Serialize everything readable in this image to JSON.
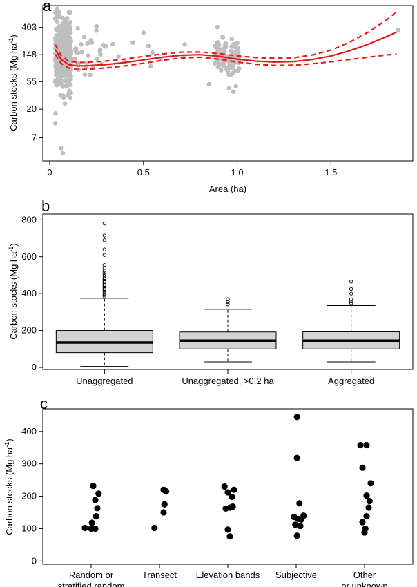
{
  "chart_data": [
    {
      "panel": "a",
      "type": "scatter",
      "xlabel": "Area (ha)",
      "ylabel": "Carbon stocks (Mg ha",
      "ylabel_sup": "-1",
      "ylabel_close": ")",
      "y_scale": "log",
      "xlim": [
        0,
        1.9
      ],
      "ylim": [
        3,
        900
      ],
      "x_ticks": [
        0,
        0.5,
        1,
        1.5
      ],
      "x_tick_labels": [
        "0",
        "0.5",
        "1.0",
        "1.5"
      ],
      "y_ticks": [
        7,
        20,
        55,
        148,
        403
      ],
      "y_tick_labels": [
        "7",
        "20",
        "55",
        "148",
        "403"
      ],
      "points_color": "#bebebe",
      "fit_color": "#e31a1c",
      "fit_curve": {
        "x": [
          0.03,
          0.06,
          0.1,
          0.15,
          0.2,
          0.3,
          0.4,
          0.5,
          0.6,
          0.7,
          0.8,
          0.9,
          1.0,
          1.1,
          1.2,
          1.3,
          1.4,
          1.5,
          1.6,
          1.7,
          1.8,
          1.85
        ],
        "fit": [
          180,
          125,
          103,
          98,
          99,
          103,
          111,
          122,
          135,
          145,
          148,
          140,
          126,
          117,
          113,
          115,
          124,
          141,
          171,
          218,
          290,
          340
        ],
        "lower": [
          150,
          108,
          91,
          86,
          87,
          91,
          98,
          108,
          120,
          131,
          135,
          126,
          113,
          104,
          100,
          101,
          106,
          114,
          124,
          135,
          147,
          152
        ],
        "upper": [
          215,
          145,
          117,
          111,
          112,
          117,
          126,
          139,
          152,
          162,
          163,
          155,
          142,
          133,
          130,
          132,
          146,
          175,
          234,
          340,
          540,
          720
        ]
      },
      "clusters": [
        {
          "x_min": 0.03,
          "x_max": 0.115,
          "n": 420,
          "log_mean": 5.0,
          "log_sd": 0.62
        },
        {
          "x_min": 0.115,
          "x_max": 0.3,
          "n": 30,
          "log_mean": 5.0,
          "log_sd": 0.4
        },
        {
          "x_min": 0.3,
          "x_max": 0.9,
          "n": 10,
          "log_mean": 5.1,
          "log_sd": 0.5
        },
        {
          "x_min": 0.88,
          "x_max": 1.01,
          "n": 110,
          "log_mean": 4.85,
          "log_sd": 0.38
        },
        {
          "x_min": 1.85,
          "x_max": 1.86,
          "n": 1,
          "log_mean": 5.9,
          "log_sd": 0.0
        }
      ],
      "extra_points": [
        {
          "x": 0.06,
          "y": 4.8
        },
        {
          "x": 0.07,
          "y": 4.0
        },
        {
          "x": 0.03,
          "y": 12
        },
        {
          "x": 0.04,
          "y": 800
        },
        {
          "x": 0.25,
          "y": 420
        },
        {
          "x": 0.5,
          "y": 330
        },
        {
          "x": 0.98,
          "y": 38
        },
        {
          "x": 0.85,
          "y": 50
        },
        {
          "x": 0.4,
          "y": 115
        },
        {
          "x": 0.3,
          "y": 200
        }
      ]
    },
    {
      "panel": "b",
      "type": "box",
      "ylabel": "Carbon stocks (Mg ha",
      "ylabel_sup": "-1",
      "ylabel_close": ")",
      "ylim": [
        0,
        820
      ],
      "y_ticks": [
        0,
        200,
        400,
        600,
        800
      ],
      "y_tick_labels": [
        "0",
        "200",
        "400",
        "600",
        "800"
      ],
      "categories": [
        "Unaggregated",
        "Unaggregated, >0.2 ha",
        "Aggregated"
      ],
      "boxes": [
        {
          "min": 5,
          "q1": 80,
          "median": 135,
          "q3": 200,
          "max": 375,
          "outliers": [
            385,
            393,
            400,
            410,
            418,
            425,
            432,
            440,
            448,
            455,
            463,
            470,
            478,
            485,
            495,
            505,
            515,
            525,
            540,
            555,
            610,
            640,
            690,
            715,
            780
          ]
        },
        {
          "min": 30,
          "q1": 100,
          "median": 145,
          "q3": 192,
          "max": 315,
          "outliers": [
            342,
            355,
            370
          ]
        },
        {
          "min": 30,
          "q1": 100,
          "median": 145,
          "q3": 193,
          "max": 335,
          "outliers": [
            348,
            358,
            370,
            400,
            425,
            465
          ]
        }
      ]
    },
    {
      "panel": "c",
      "type": "scatter",
      "ylabel": "Carbon stocks (Mg ha",
      "ylabel_sup": "-1",
      "ylabel_close": ")",
      "ylim": [
        -10,
        470
      ],
      "y_ticks": [
        0,
        100,
        200,
        300,
        400
      ],
      "y_tick_labels": [
        "0",
        "100",
        "200",
        "300",
        "400"
      ],
      "categories": [
        [
          "Random or",
          "stratified random"
        ],
        [
          "Transect"
        ],
        [
          "Elevation bands"
        ],
        [
          "Subjective"
        ],
        [
          "Other",
          "or unknown"
        ]
      ],
      "points": [
        [
          {
            "dx": -0.15,
            "y": 102
          },
          {
            "dx": 0.05,
            "y": 232
          },
          {
            "dx": 0.18,
            "y": 208
          },
          {
            "dx": 0.1,
            "y": 188
          },
          {
            "dx": 0.15,
            "y": 163
          },
          {
            "dx": 0.12,
            "y": 138
          },
          {
            "dx": 0.02,
            "y": 118
          },
          {
            "dx": 0.0,
            "y": 100
          },
          {
            "dx": 0.1,
            "y": 100
          }
        ],
        [
          {
            "dx": -0.12,
            "y": 102
          },
          {
            "dx": 0.1,
            "y": 220
          },
          {
            "dx": 0.16,
            "y": 215
          },
          {
            "dx": 0.12,
            "y": 175
          },
          {
            "dx": 0.1,
            "y": 150
          }
        ],
        [
          {
            "dx": -0.08,
            "y": 230
          },
          {
            "dx": 0.15,
            "y": 220
          },
          {
            "dx": 0.0,
            "y": 212
          },
          {
            "dx": 0.1,
            "y": 198
          },
          {
            "dx": 0.12,
            "y": 168
          },
          {
            "dx": -0.05,
            "y": 162
          },
          {
            "dx": 0.05,
            "y": 165
          },
          {
            "dx": 0.0,
            "y": 97
          },
          {
            "dx": 0.05,
            "y": 76
          }
        ],
        [
          {
            "dx": 0.02,
            "y": 445
          },
          {
            "dx": 0.02,
            "y": 318
          },
          {
            "dx": 0.08,
            "y": 178
          },
          {
            "dx": 0.18,
            "y": 140
          },
          {
            "dx": 0.05,
            "y": 130
          },
          {
            "dx": 0.12,
            "y": 128
          },
          {
            "dx": -0.05,
            "y": 136
          },
          {
            "dx": 0.1,
            "y": 108
          },
          {
            "dx": -0.02,
            "y": 112
          },
          {
            "dx": 0.02,
            "y": 78
          }
        ],
        [
          {
            "dx": -0.1,
            "y": 358
          },
          {
            "dx": 0.05,
            "y": 358
          },
          {
            "dx": -0.05,
            "y": 288
          },
          {
            "dx": 0.15,
            "y": 240
          },
          {
            "dx": 0.05,
            "y": 202
          },
          {
            "dx": 0.12,
            "y": 185
          },
          {
            "dx": 0.1,
            "y": 165
          },
          {
            "dx": 0.05,
            "y": 138
          },
          {
            "dx": -0.05,
            "y": 120
          },
          {
            "dx": 0.02,
            "y": 100
          },
          {
            "dx": 0.0,
            "y": 88
          }
        ]
      ]
    }
  ],
  "panel_labels": {
    "a": "a",
    "b": "b",
    "c": "c"
  }
}
